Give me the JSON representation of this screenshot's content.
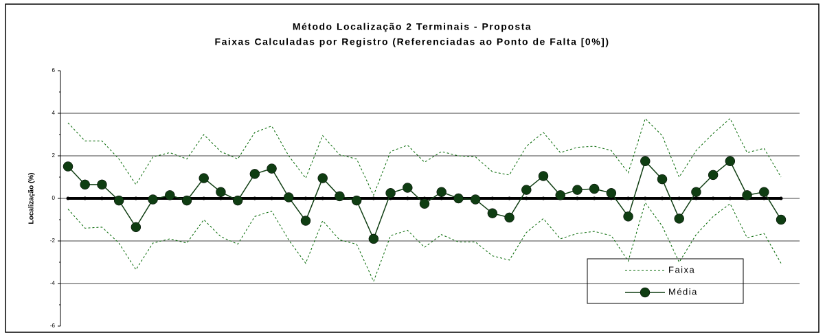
{
  "chart_data": {
    "type": "line",
    "title": "Método Localização 2 Terminais - Proposta",
    "subtitle": "Faixas Calculadas por Registro (Referenciadas ao Ponto de Falta [0%])",
    "y_label": "Localização (%)",
    "categories": [
      null,
      null,
      null,
      null,
      null,
      null,
      null,
      null,
      null,
      null,
      null,
      null,
      null,
      null,
      null,
      null,
      null,
      null,
      null,
      null,
      null,
      null,
      null,
      null,
      null,
      null,
      null,
      null,
      null,
      null,
      null,
      null,
      null,
      null,
      null,
      null,
      null,
      null,
      null,
      null,
      null,
      null,
      null
    ],
    "ylim": [
      -6,
      6
    ],
    "yticks": [
      -6,
      -4,
      -2,
      0,
      2,
      4,
      6
    ],
    "grid": true,
    "legend": "bottom-right",
    "series": [
      {
        "name": "Faixa",
        "color": "#006600",
        "dashed": true,
        "values": [
          3.55,
          2.7,
          2.7,
          1.85,
          0.65,
          1.95,
          2.15,
          1.85,
          3.0,
          2.2,
          1.85,
          3.1,
          3.4,
          2.0,
          0.95,
          2.95,
          2.05,
          1.85,
          0.15,
          2.2,
          2.5,
          1.7,
          2.2,
          2.0,
          1.95,
          1.25,
          1.1,
          2.45,
          3.1,
          2.15,
          2.4,
          2.45,
          2.25,
          1.2,
          3.75,
          2.95,
          1.0,
          2.25,
          3.05,
          3.75,
          2.15,
          2.35,
          1.0
        ]
      },
      {
        "name": "Faixa",
        "color": "#006600",
        "dashed": true,
        "values": [
          -0.5,
          -1.4,
          -1.35,
          -2.1,
          -3.35,
          -2.1,
          -1.9,
          -2.1,
          -1.0,
          -1.8,
          -2.15,
          -0.85,
          -0.6,
          -1.95,
          -3.05,
          -1.05,
          -1.95,
          -2.15,
          -3.9,
          -1.75,
          -1.5,
          -2.3,
          -1.7,
          -2.05,
          -2.05,
          -2.7,
          -2.9,
          -1.6,
          -0.95,
          -1.9,
          -1.65,
          -1.55,
          -1.75,
          -2.95,
          -0.2,
          -1.3,
          -3.0,
          -1.7,
          -0.85,
          -0.25,
          -1.85,
          -1.65,
          -3.05
        ]
      },
      {
        "color": "#000000",
        "marker": "dot",
        "width": 4,
        "values": [
          0,
          0,
          0,
          0,
          0,
          0,
          0,
          0,
          0,
          0,
          0,
          0,
          0,
          0,
          0,
          0,
          0,
          0,
          0,
          0,
          0,
          0,
          0,
          0,
          0,
          0,
          0,
          0,
          0,
          0,
          0,
          0,
          0,
          0,
          0,
          0,
          0,
          0,
          0,
          0,
          0,
          0,
          0
        ]
      },
      {
        "name": "Média",
        "color": "#0f3d12",
        "marker": "circle",
        "width": 1.5,
        "values": [
          1.5,
          0.65,
          0.65,
          -0.1,
          -1.35,
          -0.05,
          0.15,
          -0.1,
          0.95,
          0.3,
          -0.1,
          1.15,
          1.4,
          0.05,
          -1.05,
          0.95,
          0.1,
          -0.1,
          -1.9,
          0.25,
          0.5,
          -0.25,
          0.3,
          0,
          -0.05,
          -0.7,
          -0.9,
          0.4,
          1.05,
          0.15,
          0.4,
          0.45,
          0.25,
          -0.85,
          1.75,
          0.9,
          -0.95,
          0.3,
          1.1,
          1.75,
          0.15,
          0.3,
          -1.0
        ]
      }
    ]
  }
}
